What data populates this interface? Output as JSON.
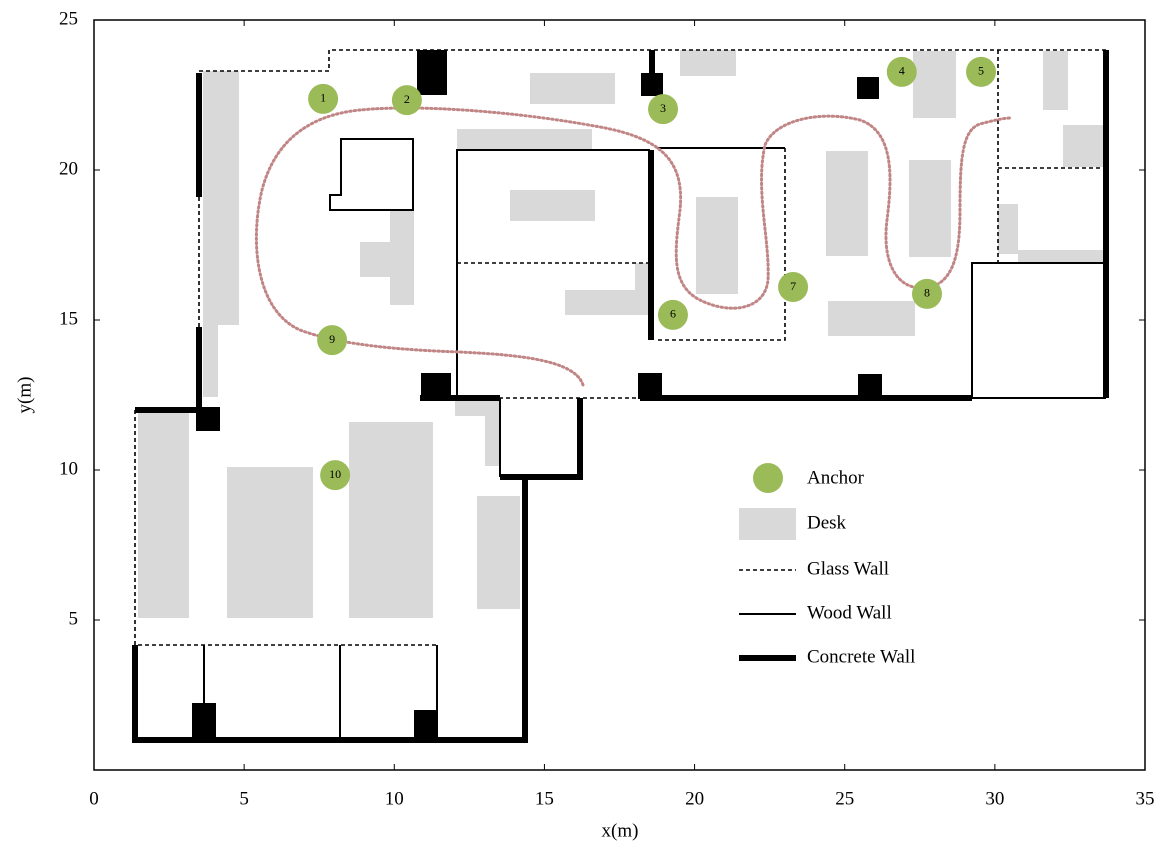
{
  "chart_data": {
    "type": "scatter",
    "xlabel": "x(m)",
    "ylabel": "y(m)",
    "xlim": [
      0,
      35
    ],
    "ylim": [
      0,
      25
    ],
    "xticks": [
      0,
      5,
      10,
      15,
      20,
      25,
      30,
      35
    ],
    "yticks": [
      5,
      10,
      15,
      20,
      25
    ],
    "series": [
      {
        "name": "Anchor",
        "color": "#9bbb59",
        "x": [
          7.63,
          10.42,
          18.95,
          26.9,
          29.54,
          19.28,
          23.28,
          27.74,
          7.93,
          8.03
        ],
        "values": [
          22.37,
          22.33,
          22.03,
          23.27,
          23.27,
          15.17,
          16.1,
          15.87,
          14.33,
          9.83
        ],
        "labels": [
          "1",
          "2",
          "3",
          "4",
          "5",
          "6",
          "7",
          "8",
          "9",
          "10"
        ]
      }
    ],
    "legend_items": [
      "Desk",
      "Glass Wall",
      "Wood Wall",
      "Concrete Wall"
    ]
  }
}
